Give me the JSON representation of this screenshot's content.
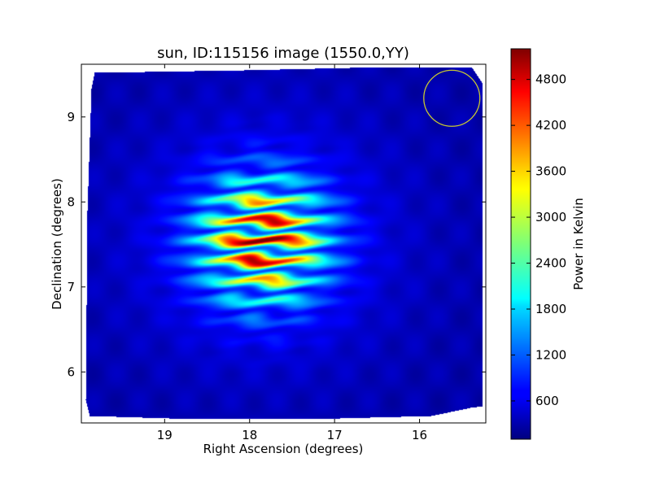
{
  "chart_data": {
    "type": "heatmap",
    "title": "sun, ID:115156 image (1550.0,YY)",
    "xlabel": "Right Ascension (degrees)",
    "ylabel": "Declination (degrees)",
    "colorbar_label": "Power in Kelvin",
    "x_axis_inverted": true,
    "xlim": [
      19.98,
      15.22
    ],
    "ylim": [
      5.4,
      9.62
    ],
    "x_ticks": [
      19,
      18,
      17,
      16
    ],
    "y_ticks": [
      6,
      7,
      8,
      9
    ],
    "colorbar": {
      "colormap": "jet",
      "range": [
        100,
        5200
      ],
      "ticks": [
        600,
        1200,
        1800,
        2400,
        3000,
        3600,
        4200,
        4800
      ]
    },
    "background_level": 300,
    "source": {
      "center_ra": 17.85,
      "center_dec": 7.55,
      "peak_power": 5100,
      "fringe_count": 6,
      "fringe_spacing_dec": 0.24
    },
    "circle_marker": {
      "center_ra": 15.62,
      "center_dec": 9.22,
      "radius_deg": 0.33,
      "color": "#c8c832"
    }
  }
}
